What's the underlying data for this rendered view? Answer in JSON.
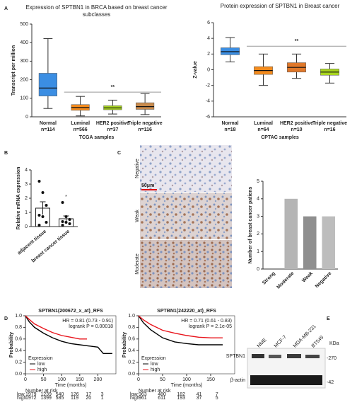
{
  "panel_labels": [
    "A",
    "B",
    "C",
    "D",
    "E"
  ],
  "chart_data": [
    {
      "type": "box",
      "title": "Expression of SPTBN1 in BRCA based on breast cancer subclasses",
      "ylabel": "Transcript per million",
      "xlabel": "TCGA samples",
      "categories": [
        "Normal",
        "Luminal",
        "HER2 positive",
        "Triple negative"
      ],
      "n_labels": [
        "n=114",
        "n=566",
        "n=37",
        "n=116"
      ],
      "colors": [
        "#3b8ee3",
        "#f38b1e",
        "#a8d520",
        "#c98b4d"
      ],
      "boxes": [
        {
          "min": 45,
          "q1": 112,
          "median": 155,
          "q3": 235,
          "max": 422
        },
        {
          "min": 5,
          "q1": 35,
          "median": 50,
          "q3": 66,
          "max": 110
        },
        {
          "min": 15,
          "q1": 38,
          "median": 48,
          "q3": 60,
          "max": 90
        },
        {
          "min": 12,
          "q1": 40,
          "median": 55,
          "q3": 76,
          "max": 125
        }
      ],
      "annotation": {
        "text": "**",
        "y": 133
      },
      "ylim": [
        0,
        500
      ],
      "yticks": [
        0,
        100,
        200,
        300,
        400,
        500
      ]
    },
    {
      "type": "box",
      "title": "Protein expression of SPTBN1 in Breast cancer",
      "ylabel": "Z-value",
      "xlabel": "CPTAC samples",
      "categories": [
        "Normal",
        "Luminal",
        "HER2 positive",
        "Triple negative"
      ],
      "n_labels": [
        "n=18",
        "n=64",
        "n=10",
        "n=16"
      ],
      "colors": [
        "#3b8ee3",
        "#f38b1e",
        "#e0782a",
        "#a8d520"
      ],
      "boxes": [
        {
          "min": 1.0,
          "q1": 1.9,
          "median": 2.3,
          "q3": 2.8,
          "max": 4.1
        },
        {
          "min": -2.0,
          "q1": -0.6,
          "median": -0.1,
          "q3": 0.4,
          "max": 2.0
        },
        {
          "min": -1.1,
          "q1": -0.3,
          "median": 0.3,
          "q3": 0.9,
          "max": 2.0
        },
        {
          "min": -1.7,
          "q1": -0.7,
          "median": -0.3,
          "q3": 0.1,
          "max": 0.8
        }
      ],
      "annotation": {
        "text": "**",
        "y": 3.0
      },
      "ylim": [
        -6,
        6
      ],
      "yticks": [
        -6,
        -4,
        -2,
        0,
        2,
        4,
        6
      ]
    },
    {
      "type": "dot",
      "ylabel": "Relative mRNA expression",
      "categories": [
        "adjacent tissue",
        "breast cancer tissue"
      ],
      "points": [
        [
          3.2,
          2.4,
          1.5,
          0.8,
          0.7,
          0.3,
          0.1
        ],
        [
          1.7,
          0.7,
          0.5,
          0.35,
          0.3,
          0.2,
          0.1
        ]
      ],
      "means": [
        1.3,
        0.55
      ],
      "sems": [
        0.45,
        0.2
      ],
      "annotation": "*",
      "ylim": [
        0,
        4
      ],
      "yticks": [
        0,
        1,
        2,
        3,
        4
      ]
    },
    {
      "type": "bar",
      "ylabel": "Number of breast cancer patiens",
      "categories": [
        "Strong",
        "Moderate",
        "Weak",
        "Negative"
      ],
      "values": [
        0,
        4,
        3,
        3
      ],
      "colors": [
        "#8c8c8c",
        "#b5b5b5",
        "#8f8f8f",
        "#bdbdbd"
      ],
      "ylim": [
        0,
        5
      ],
      "yticks": [
        0,
        1,
        2,
        3,
        4,
        5
      ]
    },
    {
      "type": "km",
      "title": "SPTBN1(200672_x_at)_RFS",
      "hr_text": "HR = 0.81 (0.73 - 0.91)",
      "logrank_text": "logrank P = 0.00018",
      "xlabel": "Time (months)",
      "ylabel": "Probability",
      "legend_title": "Expression",
      "series": [
        {
          "name": "low",
          "color": "#000000",
          "x": [
            0,
            10,
            25,
            50,
            75,
            100,
            125,
            150,
            175,
            200,
            215,
            240
          ],
          "y": [
            1,
            0.9,
            0.8,
            0.7,
            0.62,
            0.56,
            0.52,
            0.5,
            0.48,
            0.46,
            0.35,
            0.35
          ]
        },
        {
          "name": "high",
          "color": "#e8141c",
          "x": [
            0,
            10,
            25,
            50,
            75,
            100,
            125,
            150,
            170
          ],
          "y": [
            1,
            0.94,
            0.86,
            0.78,
            0.71,
            0.66,
            0.63,
            0.6,
            0.6
          ]
        }
      ],
      "risk_title": "Number at risk",
      "risk": [
        {
          "name": "low",
          "values": [
            1979,
            1239,
            540,
            126,
            17,
            3
          ]
        },
        {
          "name": "high",
          "values": [
            1972,
            1399,
            585,
            119,
            20,
            1
          ]
        }
      ],
      "xlim": [
        0,
        250
      ],
      "xticks": [
        0,
        50,
        100,
        150,
        200
      ],
      "ylim": [
        0,
        1
      ],
      "yticks": [
        {
          "value": 0,
          "label": "0.0"
        },
        {
          "value": 0.2,
          "label": "0.2"
        },
        {
          "value": 0.4,
          "label": "0.4"
        },
        {
          "value": 0.6,
          "label": "0.6"
        },
        {
          "value": 0.8,
          "label": "0.8"
        },
        {
          "value": 1,
          "label": "1.0"
        }
      ]
    },
    {
      "type": "km",
      "title": "SPTBN1(242220_at)_RFS",
      "hr_text": "HR = 0.71 (0.61 - 0.83)",
      "logrank_text": "logrank P = 2.1e-05",
      "xlabel": "Time (months)",
      "ylabel": "Probability",
      "legend_title": "Expression",
      "series": [
        {
          "name": "low",
          "color": "#000000",
          "x": [
            0,
            10,
            25,
            50,
            75,
            100,
            125,
            150,
            175
          ],
          "y": [
            1,
            0.88,
            0.76,
            0.62,
            0.55,
            0.52,
            0.5,
            0.5,
            0.5
          ]
        },
        {
          "name": "high",
          "color": "#e8141c",
          "x": [
            0,
            10,
            25,
            50,
            75,
            100,
            125,
            150,
            175
          ],
          "y": [
            1,
            0.93,
            0.85,
            0.75,
            0.7,
            0.66,
            0.63,
            0.62,
            0.62
          ]
        }
      ],
      "risk_title": "Number at risk",
      "risk": [
        {
          "name": "low",
          "values": [
            963,
            480,
            182,
            41,
            7
          ]
        },
        {
          "name": "high",
          "values": [
            961,
            611,
            193,
            37,
            5
          ]
        }
      ],
      "xlim": [
        0,
        200
      ],
      "xticks": [
        0,
        50,
        100,
        150
      ],
      "ylim": [
        0,
        1
      ],
      "yticks": [
        {
          "value": 0,
          "label": "0.0"
        },
        {
          "value": 0.2,
          "label": "0.2"
        },
        {
          "value": 0.4,
          "label": "0.4"
        },
        {
          "value": 0.6,
          "label": "0.6"
        },
        {
          "value": 0.8,
          "label": "0.8"
        },
        {
          "value": 1,
          "label": "1.0"
        }
      ]
    }
  ],
  "micrographs": {
    "labels": [
      "Negative",
      "Weak",
      "Moderate"
    ],
    "scale_bar": "50μm"
  },
  "western_blot": {
    "lanes": [
      "NME",
      "MCF-7",
      "MDA-MB-231",
      "BT549"
    ],
    "unit": "KDa",
    "rows": [
      {
        "name": "SPTBN1",
        "marker": "-270"
      },
      {
        "name": "β-actin",
        "marker": "-42"
      }
    ]
  }
}
